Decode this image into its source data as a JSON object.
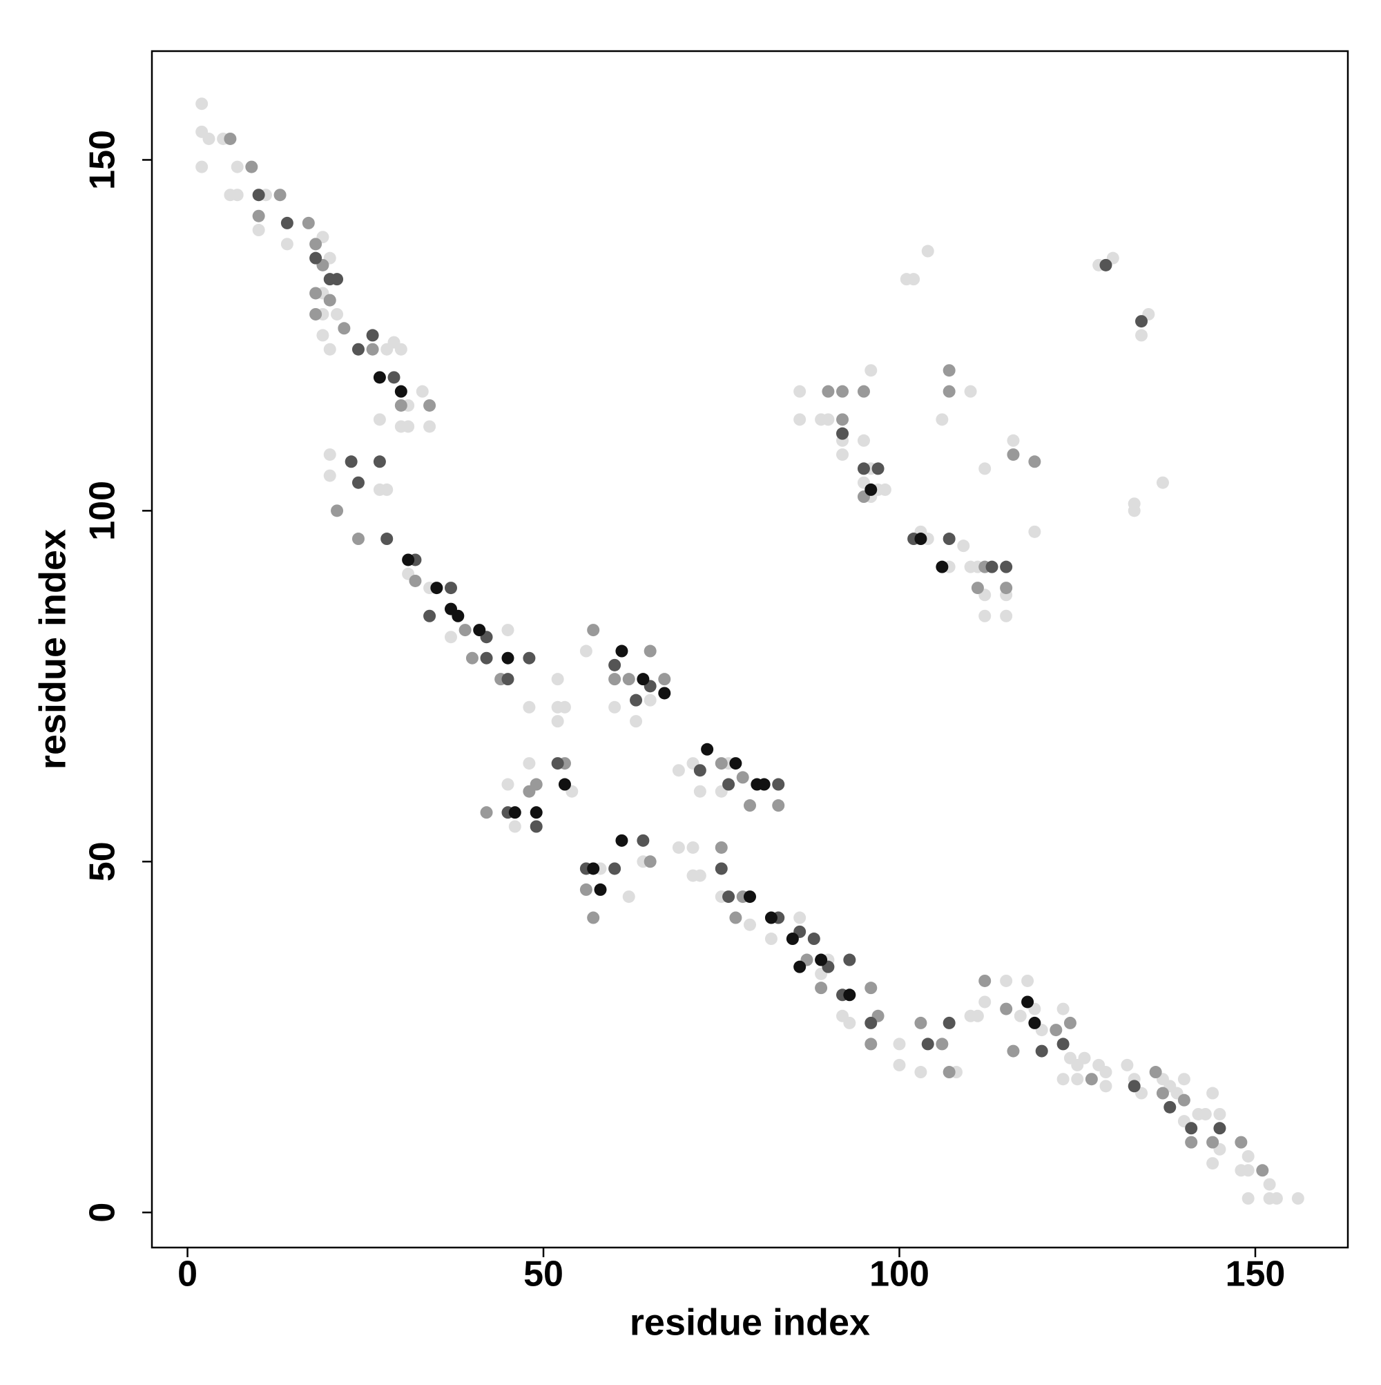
{
  "chart_data": {
    "type": "scatter",
    "xlabel": "residue index",
    "ylabel": "residue index",
    "xlim": [
      -5,
      163
    ],
    "ylim": [
      -5,
      165.5
    ],
    "xticks": [
      0,
      50,
      100,
      150
    ],
    "yticks": [
      0,
      50,
      100,
      150
    ],
    "grid": false,
    "series": [
      {
        "color": "#dddddd",
        "x": [
          2,
          2,
          2,
          3,
          5,
          7,
          6,
          7,
          11,
          10,
          14,
          19,
          20,
          19,
          19,
          21,
          19,
          20,
          28,
          29,
          30,
          33,
          31,
          27,
          30,
          31,
          34,
          20,
          20,
          28,
          27,
          31,
          34,
          37,
          45,
          48,
          52,
          52,
          53,
          52,
          56,
          60,
          63,
          65,
          69,
          71,
          72,
          75,
          76,
          45,
          48,
          54,
          46,
          58,
          62,
          64,
          69,
          71,
          72,
          71,
          75,
          79,
          82,
          86,
          90,
          89,
          92,
          93,
          100,
          100,
          103,
          108,
          110,
          111,
          112,
          115,
          117,
          118,
          119,
          120,
          123,
          124,
          123,
          125,
          125,
          126,
          128,
          129,
          129,
          132,
          133,
          134,
          137,
          138,
          139,
          140,
          140,
          142,
          143,
          144,
          145,
          145,
          144,
          149,
          149,
          148,
          152,
          153,
          152,
          149,
          156,
          104,
          101,
          102,
          128,
          130,
          134,
          135,
          96,
          110,
          106,
          86,
          86,
          89,
          90,
          92,
          95,
          92,
          96,
          95,
          96,
          97,
          98,
          112,
          116,
          119,
          137,
          133,
          133,
          103,
          104,
          109,
          107,
          110,
          111,
          112,
          115,
          112,
          115
        ],
        "values": [
          158,
          154,
          149,
          153,
          153,
          149,
          145,
          145,
          145,
          140,
          138,
          139,
          136,
          131,
          128,
          128,
          125,
          123,
          123,
          124,
          123,
          117,
          115,
          113,
          112,
          112,
          112,
          108,
          105,
          103,
          103,
          91,
          89,
          82,
          83,
          72,
          76,
          72,
          72,
          70,
          80,
          72,
          70,
          73,
          63,
          64,
          60,
          60,
          64,
          61,
          64,
          60,
          55,
          49,
          45,
          50,
          52,
          52,
          48,
          48,
          45,
          41,
          39,
          42,
          36,
          34,
          28,
          27,
          24,
          21,
          20,
          20,
          28,
          28,
          30,
          33,
          28,
          33,
          29,
          26,
          29,
          22,
          19,
          21,
          19,
          22,
          21,
          20,
          18,
          21,
          19,
          17,
          19,
          18,
          17,
          19,
          13,
          14,
          14,
          17,
          14,
          9,
          7,
          8,
          6,
          6,
          4,
          2,
          2,
          2,
          2,
          137,
          133,
          133,
          135,
          136,
          125,
          128,
          120,
          117,
          113,
          117,
          113,
          113,
          113,
          110,
          110,
          108,
          106,
          104,
          102,
          103,
          103,
          106,
          110,
          97,
          104,
          101,
          100,
          97,
          96,
          95,
          92,
          92,
          92,
          88,
          88,
          85,
          85
        ]
      },
      {
        "color": "#999999",
        "x": [
          6,
          9,
          10,
          13,
          17,
          18,
          19,
          18,
          20,
          18,
          22,
          26,
          30,
          34,
          21,
          24,
          32,
          39,
          40,
          44,
          57,
          60,
          62,
          65,
          67,
          75,
          78,
          79,
          83,
          48,
          49,
          53,
          42,
          56,
          65,
          57,
          75,
          78,
          77,
          87,
          89,
          96,
          97,
          96,
          103,
          106,
          107,
          112,
          115,
          116,
          122,
          124,
          127,
          136,
          137,
          140,
          141,
          144,
          148,
          151,
          90,
          92,
          95,
          92,
          107,
          107,
          112,
          115,
          111,
          119,
          116,
          95
        ],
        "values": [
          153,
          149,
          142,
          145,
          141,
          138,
          135,
          131,
          130,
          128,
          126,
          123,
          115,
          115,
          100,
          96,
          90,
          83,
          79,
          76,
          83,
          76,
          76,
          80,
          76,
          64,
          62,
          58,
          58,
          60,
          61,
          64,
          57,
          46,
          50,
          42,
          52,
          45,
          42,
          36,
          32,
          32,
          28,
          24,
          27,
          24,
          20,
          33,
          29,
          23,
          26,
          27,
          19,
          20,
          17,
          16,
          10,
          10,
          10,
          6,
          117,
          117,
          117,
          113,
          120,
          117,
          92,
          89,
          89,
          107,
          108,
          102
        ]
      },
      {
        "color": "#555555",
        "x": [
          24,
          26,
          29,
          23,
          27,
          24,
          28,
          32,
          37,
          34,
          42,
          42,
          48,
          45,
          60,
          63,
          65,
          72,
          76,
          83,
          45,
          49,
          52,
          56,
          60,
          64,
          75,
          76,
          83,
          86,
          88,
          90,
          92,
          93,
          96,
          104,
          107,
          120,
          123,
          133,
          138,
          141,
          145,
          95,
          97,
          102,
          107,
          113,
          115,
          92,
          134,
          129,
          14,
          18,
          20,
          21,
          10
        ],
        "values": [
          123,
          125,
          119,
          107,
          107,
          104,
          96,
          93,
          89,
          85,
          82,
          79,
          79,
          76,
          78,
          73,
          75,
          63,
          61,
          61,
          57,
          55,
          64,
          49,
          49,
          53,
          49,
          45,
          42,
          40,
          39,
          35,
          31,
          36,
          27,
          24,
          27,
          23,
          24,
          18,
          15,
          12,
          12,
          106,
          106,
          96,
          96,
          92,
          92,
          111,
          127,
          135,
          141,
          136,
          133,
          133,
          145
        ]
      },
      {
        "color": "#111111",
        "x": [
          27,
          30,
          31,
          35,
          37,
          38,
          41,
          45,
          61,
          64,
          67,
          73,
          77,
          80,
          81,
          46,
          49,
          53,
          57,
          58,
          61,
          79,
          82,
          85,
          86,
          89,
          93,
          103,
          96,
          119,
          118,
          106
        ],
        "values": [
          119,
          117,
          93,
          89,
          86,
          85,
          83,
          79,
          80,
          76,
          74,
          66,
          64,
          61,
          61,
          57,
          57,
          61,
          49,
          46,
          53,
          45,
          42,
          39,
          35,
          36,
          31,
          96,
          103,
          27,
          30,
          92
        ]
      }
    ]
  }
}
